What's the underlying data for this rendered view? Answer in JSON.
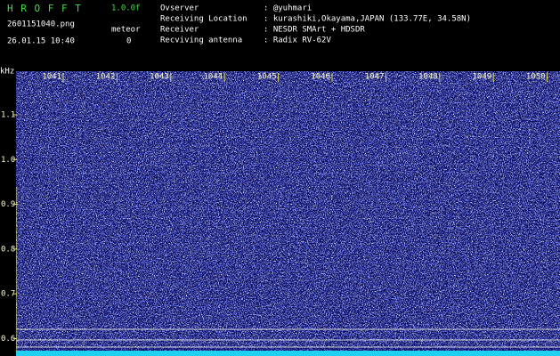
{
  "header": {
    "app": "H R O F F T",
    "version": "1.0.0f",
    "file": "2601151040.png",
    "mode": "meteor",
    "datetime": "26.01.15 10:40",
    "count": "0",
    "info": [
      {
        "label": "Ovserver",
        "value": ": @yuhmari"
      },
      {
        "label": "Receiving Location",
        "value": ": kurashiki,Okayama,JAPAN (133.77E, 34.58N)"
      },
      {
        "label": "Receiver",
        "value": ": NESDR SMArt + HDSDR"
      },
      {
        "label": "Recviving antenna",
        "value": ": Radix RV-62V"
      }
    ]
  },
  "axes": {
    "unit": "kHz",
    "x_labels": [
      "1041",
      "1042",
      "1043",
      "1044",
      "1045",
      "1046",
      "1047",
      "1048",
      "1049",
      "1050"
    ],
    "y_labels": [
      "1.1",
      "1.0",
      "0.9",
      "0.8",
      "0.7",
      "0.6"
    ]
  }
}
